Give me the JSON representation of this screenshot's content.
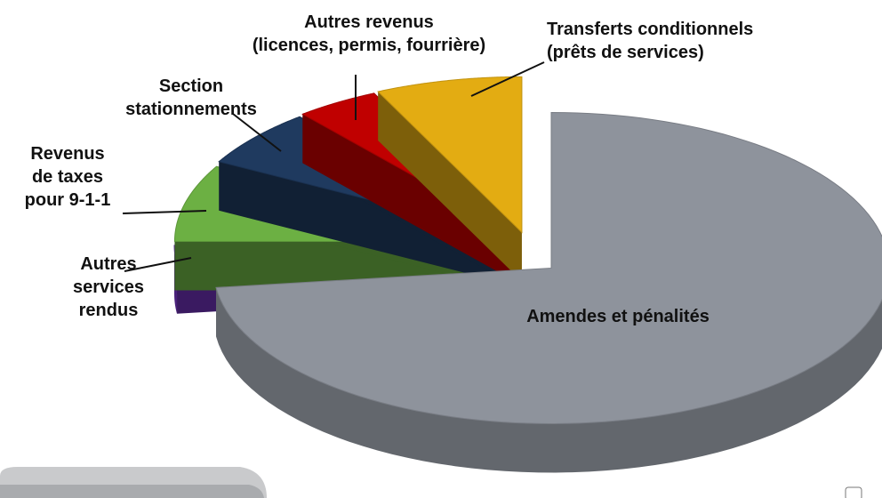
{
  "chart_data": {
    "type": "pie",
    "categories": [
      "Amendes et pénalités",
      "Autres\nservices\nrendus",
      "Revenus\nde taxes\npour 9-1-1",
      "Section\nstationnements",
      "Autres revenus\n(licences, permis, fourrière)",
      "Transferts conditionnels\n(prêts de services)"
    ],
    "values": [
      73,
      2,
      8,
      6,
      4,
      7
    ],
    "colors": [
      "#8e939c",
      "#6a2fb0",
      "#6cb043",
      "#1f3a5f",
      "#c00000",
      "#e3ac12"
    ]
  }
}
